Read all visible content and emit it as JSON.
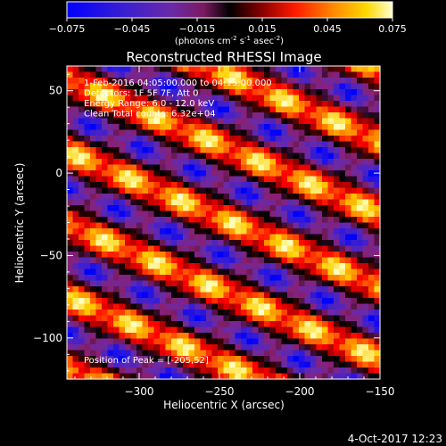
{
  "figure": {
    "date_stamp": "4-Oct-2017 12:23"
  },
  "colorbar": {
    "ticks": [
      "-0.075",
      "-0.045",
      "-0.015",
      "0.015",
      "0.045",
      "0.075"
    ],
    "label_main": "(photons cm",
    "label_sup1": "-2",
    "label_mid1": " s",
    "label_sup2": "-1",
    "label_mid2": " asec",
    "label_sup3": "-2",
    "label_end": ")"
  },
  "chart_data": {
    "type": "heatmap",
    "title": "Reconstructed RHESSI Image",
    "xlabel": "Heliocentric X (arcsec)",
    "ylabel": "Heliocentric Y (arcsec)",
    "xlim": [
      -345,
      -150
    ],
    "ylim": [
      -125,
      65
    ],
    "x_ticks": [
      -300,
      -250,
      -200,
      -150
    ],
    "y_ticks": [
      50,
      0,
      -50,
      -100
    ],
    "x_tick_labels": [
      "−300",
      "−250",
      "−200",
      "−150"
    ],
    "y_tick_labels": [
      "50",
      "0",
      "−50",
      "−100"
    ],
    "value_range": [
      -0.075,
      0.075
    ],
    "colormap": [
      "#0000ff",
      "#3b1fd0",
      "#6a2aa8",
      "#8a2070",
      "#000000",
      "#8a0000",
      "#ff0000",
      "#ff7a00",
      "#ffd000",
      "#ffffc0"
    ],
    "annotations": [
      "1-Feb-2016 04:05:00.000 to 04:15:00.000",
      "Detectors: 1F 5F 7F, Att 0",
      "Energy Range: 6.0 - 12.0 keV",
      "Clean    Total counts: 6.32e+04"
    ],
    "peak_label": "Position of Peak = [-205,52]",
    "peak": [
      -205,
      52
    ]
  }
}
